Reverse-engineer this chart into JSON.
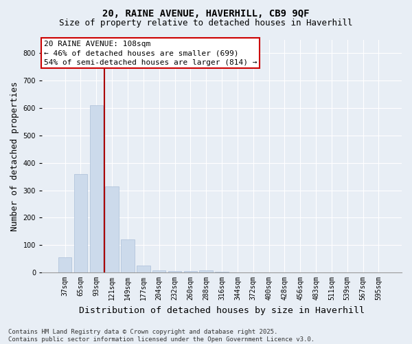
{
  "title_line1": "20, RAINE AVENUE, HAVERHILL, CB9 9QF",
  "title_line2": "Size of property relative to detached houses in Haverhill",
  "xlabel": "Distribution of detached houses by size in Haverhill",
  "ylabel": "Number of detached properties",
  "categories": [
    "37sqm",
    "65sqm",
    "93sqm",
    "121sqm",
    "149sqm",
    "177sqm",
    "204sqm",
    "232sqm",
    "260sqm",
    "288sqm",
    "316sqm",
    "344sqm",
    "372sqm",
    "400sqm",
    "428sqm",
    "456sqm",
    "483sqm",
    "511sqm",
    "539sqm",
    "567sqm",
    "595sqm"
  ],
  "values": [
    55,
    360,
    610,
    315,
    120,
    25,
    8,
    5,
    5,
    8,
    3,
    0,
    0,
    0,
    0,
    0,
    0,
    0,
    0,
    0,
    0
  ],
  "bar_color": "#ccdaeb",
  "bar_edge_color": "#aabfd8",
  "vline_x_index": 2.5,
  "vline_color": "#aa0000",
  "annotation_line1": "20 RAINE AVENUE: 108sqm",
  "annotation_line2": "← 46% of detached houses are smaller (699)",
  "annotation_line3": "54% of semi-detached houses are larger (814) →",
  "ylim": [
    0,
    850
  ],
  "yticks": [
    0,
    100,
    200,
    300,
    400,
    500,
    600,
    700,
    800
  ],
  "background_color": "#e8eef5",
  "plot_background": "#e8eef5",
  "grid_color": "#ffffff",
  "footer_line1": "Contains HM Land Registry data © Crown copyright and database right 2025.",
  "footer_line2": "Contains public sector information licensed under the Open Government Licence v3.0.",
  "title_fontsize": 10,
  "subtitle_fontsize": 9,
  "axis_label_fontsize": 9,
  "tick_fontsize": 7,
  "annotation_fontsize": 8,
  "footer_fontsize": 6.5
}
